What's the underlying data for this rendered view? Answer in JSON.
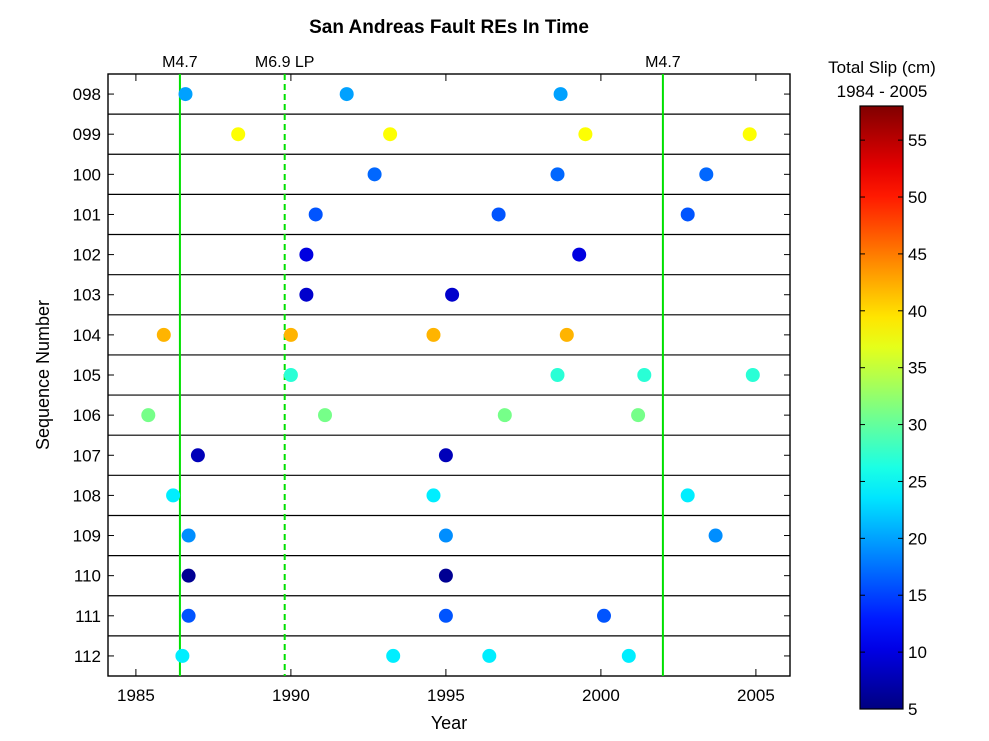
{
  "chart_data": {
    "type": "scatter",
    "title": "San Andreas Fault REs In Time",
    "xlabel": "Year",
    "ylabel": "Sequence Number",
    "xlim": [
      1984.1,
      2006.1
    ],
    "xticks": [
      1985,
      1990,
      1995,
      2000,
      2005
    ],
    "xtick_labels": [
      "1985",
      "1990",
      "1995",
      "2000",
      "2005"
    ],
    "sequences": [
      "098",
      "099",
      "100",
      "101",
      "102",
      "103",
      "104",
      "105",
      "106",
      "107",
      "108",
      "109",
      "110",
      "111",
      "112"
    ],
    "events": [
      {
        "sequence": "098",
        "points": [
          {
            "year": 1986.6,
            "slip": 20
          },
          {
            "year": 1991.8,
            "slip": 20
          },
          {
            "year": 1998.7,
            "slip": 20
          }
        ]
      },
      {
        "sequence": "099",
        "points": [
          {
            "year": 1988.3,
            "slip": 38
          },
          {
            "year": 1993.2,
            "slip": 38
          },
          {
            "year": 1999.5,
            "slip": 38
          },
          {
            "year": 2004.8,
            "slip": 38
          }
        ]
      },
      {
        "sequence": "100",
        "points": [
          {
            "year": 1992.7,
            "slip": 17
          },
          {
            "year": 1998.6,
            "slip": 17
          },
          {
            "year": 2003.4,
            "slip": 17
          }
        ]
      },
      {
        "sequence": "101",
        "points": [
          {
            "year": 1990.8,
            "slip": 16
          },
          {
            "year": 1996.7,
            "slip": 16
          },
          {
            "year": 2002.8,
            "slip": 16
          }
        ]
      },
      {
        "sequence": "102",
        "points": [
          {
            "year": 1990.5,
            "slip": 10
          },
          {
            "year": 1999.3,
            "slip": 10
          }
        ]
      },
      {
        "sequence": "103",
        "points": [
          {
            "year": 1990.5,
            "slip": 9
          },
          {
            "year": 1995.2,
            "slip": 9
          }
        ]
      },
      {
        "sequence": "104",
        "points": [
          {
            "year": 1985.9,
            "slip": 42
          },
          {
            "year": 1990.0,
            "slip": 42
          },
          {
            "year": 1994.6,
            "slip": 42
          },
          {
            "year": 1998.9,
            "slip": 42
          }
        ]
      },
      {
        "sequence": "105",
        "points": [
          {
            "year": 1990.0,
            "slip": 27
          },
          {
            "year": 1998.6,
            "slip": 27
          },
          {
            "year": 2001.4,
            "slip": 27
          },
          {
            "year": 2004.9,
            "slip": 27
          }
        ]
      },
      {
        "sequence": "106",
        "points": [
          {
            "year": 1985.4,
            "slip": 31
          },
          {
            "year": 1991.1,
            "slip": 31
          },
          {
            "year": 1996.9,
            "slip": 31
          },
          {
            "year": 2001.2,
            "slip": 31
          }
        ]
      },
      {
        "sequence": "107",
        "points": [
          {
            "year": 1987.0,
            "slip": 8
          },
          {
            "year": 1995.0,
            "slip": 8
          }
        ]
      },
      {
        "sequence": "108",
        "points": [
          {
            "year": 1986.2,
            "slip": 24
          },
          {
            "year": 1994.6,
            "slip": 24
          },
          {
            "year": 2002.8,
            "slip": 24
          }
        ]
      },
      {
        "sequence": "109",
        "points": [
          {
            "year": 1986.7,
            "slip": 19
          },
          {
            "year": 1995.0,
            "slip": 19
          },
          {
            "year": 2003.7,
            "slip": 19
          }
        ]
      },
      {
        "sequence": "110",
        "points": [
          {
            "year": 1986.7,
            "slip": 6
          },
          {
            "year": 1995.0,
            "slip": 6
          }
        ]
      },
      {
        "sequence": "111",
        "points": [
          {
            "year": 1986.7,
            "slip": 16
          },
          {
            "year": 1995.0,
            "slip": 16
          },
          {
            "year": 2000.1,
            "slip": 16
          }
        ]
      },
      {
        "sequence": "112",
        "points": [
          {
            "year": 1986.5,
            "slip": 24
          },
          {
            "year": 1993.3,
            "slip": 24
          },
          {
            "year": 1996.4,
            "slip": 24
          },
          {
            "year": 2000.9,
            "slip": 24
          }
        ]
      }
    ],
    "vertical_lines": [
      {
        "year": 1986.42,
        "label": "M4.7",
        "style": "solid",
        "color": "#00e000"
      },
      {
        "year": 1989.8,
        "label": "M6.9 LP",
        "style": "dashed",
        "color": "#00e000"
      },
      {
        "year": 2002.0,
        "label": "M4.7",
        "style": "solid",
        "color": "#00e000"
      }
    ],
    "colorbar": {
      "title_line1": "Total Slip (cm)",
      "title_line2": "1984 - 2005",
      "colormap": "jet",
      "range": [
        5,
        58
      ],
      "ticks": [
        5,
        10,
        15,
        20,
        25,
        30,
        35,
        40,
        45,
        50,
        55
      ],
      "tick_labels": [
        "5",
        "10",
        "15",
        "20",
        "25",
        "30",
        "35",
        "40",
        "45",
        "50",
        "55"
      ]
    }
  }
}
